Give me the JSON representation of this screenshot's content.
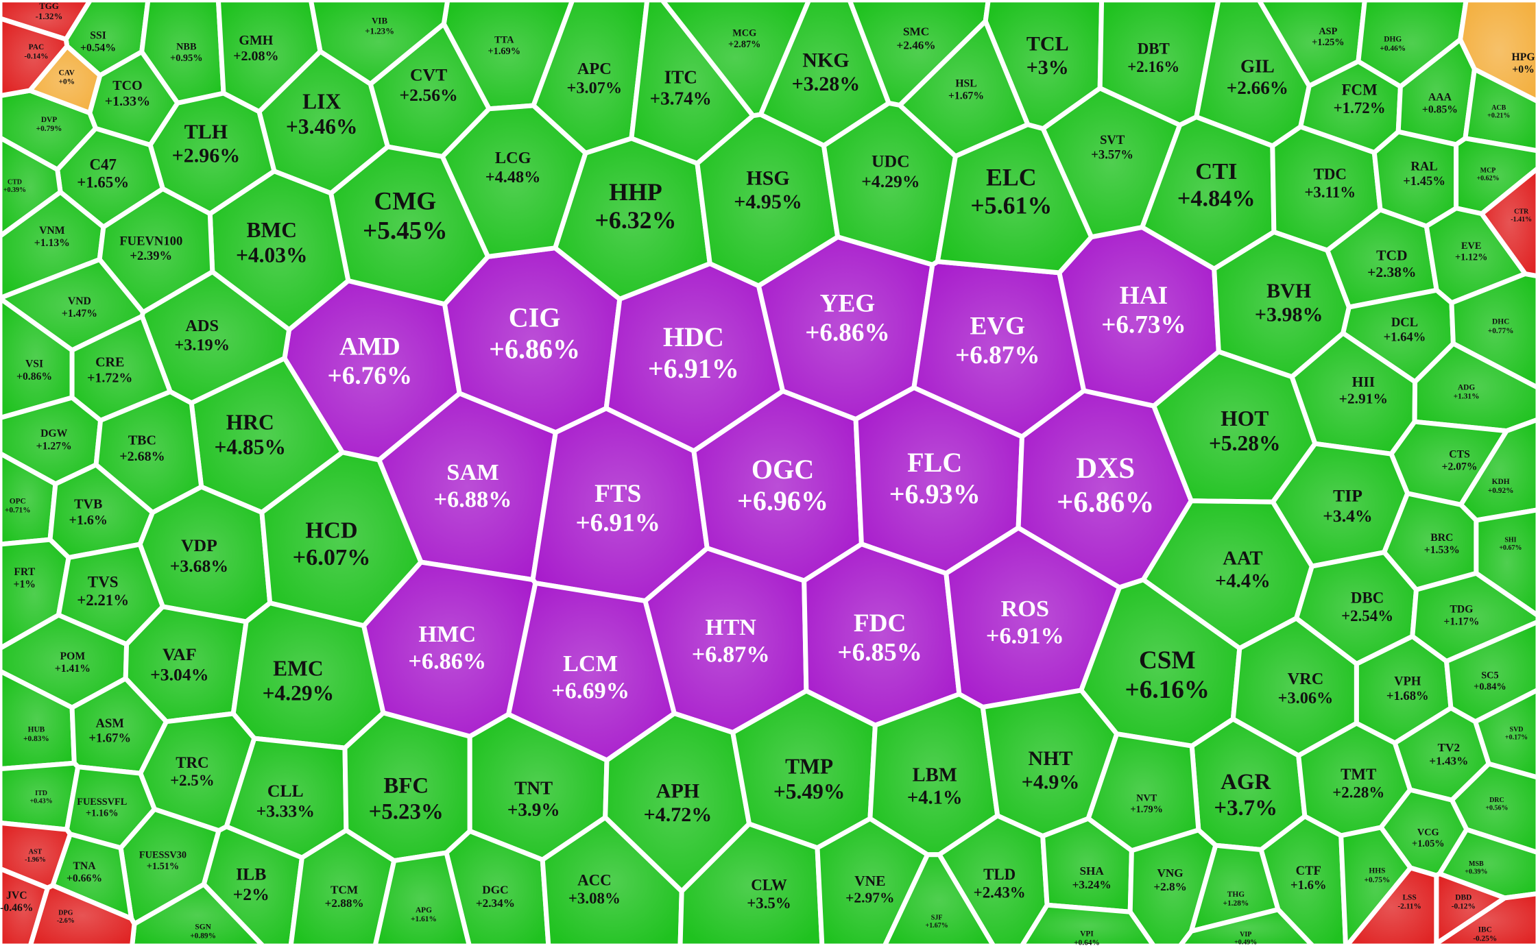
{
  "chart_data": {
    "type": "voronoi",
    "categories": [
      "AMD",
      "CIG",
      "HDC",
      "YEG",
      "EVG",
      "HAI",
      "SAM",
      "FTS",
      "OGC",
      "FLC",
      "DXS",
      "HMC",
      "LCM",
      "HTN",
      "FDC",
      "ROS",
      "LIX",
      "CVT",
      "TTA",
      "APC",
      "ITC",
      "MCG",
      "NKG",
      "SMC",
      "TCL",
      "DBT",
      "GIL",
      "ASP",
      "DHG",
      "SSI",
      "NBB",
      "GMH",
      "VIB",
      "TCO",
      "TLH",
      "C47",
      "DVP",
      "CTD",
      "LCG",
      "HHP",
      "HSG",
      "UDC",
      "HSL",
      "ELC",
      "SVT",
      "CTI",
      "FCM",
      "AAA",
      "TDC",
      "RAL",
      "ACB",
      "MCP",
      "CMG",
      "BMC",
      "VNM",
      "FUEVN100",
      "VND",
      "ADS",
      "BVH",
      "TCD",
      "EVE",
      "DCL",
      "DHC",
      "VSI",
      "CRE",
      "HRC",
      "DGW",
      "TBC",
      "HOT",
      "HII",
      "ADG",
      "CTS",
      "KDH",
      "OPC",
      "TVB",
      "VDP",
      "HCD",
      "TIP",
      "AAT",
      "BRC",
      "SHI",
      "FRT",
      "TVS",
      "DBC",
      "TDG",
      "POM",
      "VAF",
      "EMC",
      "CSM",
      "VRC",
      "VPH",
      "SC5",
      "HUB",
      "ASM",
      "TRC",
      "CLL",
      "BFC",
      "TNT",
      "APH",
      "TMP",
      "LBM",
      "NHT",
      "AGR",
      "TMT",
      "TV2",
      "SVD",
      "ITD",
      "FUESSVFL",
      "NVT",
      "DRC",
      "FUESSV30",
      "TNA",
      "ILB",
      "TCM",
      "DGC",
      "ACC",
      "CLW",
      "VNE",
      "TLD",
      "SHA",
      "VNG",
      "CTF",
      "VCG",
      "MSB",
      "HHS",
      "THG",
      "APG",
      "SGN",
      "SJF",
      "VPI",
      "VIP",
      "HPG",
      "CAV",
      "TGG",
      "PAC",
      "JVC",
      "AST",
      "DPG",
      "LSS",
      "DBD",
      "IBC",
      "CTR"
    ],
    "values": [
      6.76,
      6.86,
      6.91,
      6.86,
      6.87,
      6.73,
      6.88,
      6.91,
      6.96,
      6.93,
      6.86,
      6.86,
      6.69,
      6.87,
      6.85,
      6.91,
      3.46,
      2.56,
      1.69,
      3.07,
      3.74,
      2.87,
      3.28,
      2.46,
      3,
      2.16,
      2.66,
      1.25,
      0.46,
      0.54,
      0.95,
      2.08,
      1.23,
      1.33,
      2.96,
      1.65,
      0.79,
      0.39,
      4.48,
      6.32,
      4.95,
      4.29,
      1.67,
      5.61,
      3.57,
      4.84,
      1.72,
      0.85,
      3.11,
      1.45,
      0.21,
      0.62,
      5.45,
      4.03,
      1.13,
      2.39,
      1.47,
      3.19,
      3.98,
      2.38,
      1.12,
      1.64,
      0.77,
      0.86,
      1.72,
      4.85,
      1.27,
      2.68,
      5.28,
      2.91,
      1.31,
      2.07,
      0.92,
      0.71,
      1.6,
      3.68,
      6.07,
      3.4,
      4.4,
      1.53,
      0.67,
      1,
      2.21,
      2.54,
      1.17,
      1.41,
      3.04,
      4.29,
      6.16,
      3.06,
      1.68,
      0.84,
      0.83,
      1.67,
      2.5,
      3.33,
      5.23,
      3.9,
      4.72,
      5.49,
      4.1,
      4.9,
      3.7,
      2.28,
      1.43,
      0.17,
      0.43,
      1.16,
      1.79,
      0.56,
      1.51,
      0.66,
      2,
      2.88,
      2.34,
      3.08,
      3.5,
      2.97,
      2.43,
      3.24,
      2.8,
      1.6,
      1.05,
      0.39,
      0.75,
      1.28,
      1.61,
      0.89,
      1.67,
      0.64,
      0.49,
      0,
      0,
      -1.32,
      -0.14,
      -0.46,
      -1.96,
      -2.6,
      -2.11,
      -0.12,
      -0.25,
      -1.41
    ],
    "value_labels": [
      "+6.76%",
      "+6.86%",
      "+6.91%",
      "+6.86%",
      "+6.87%",
      "+6.73%",
      "+6.88%",
      "+6.91%",
      "+6.96%",
      "+6.93%",
      "+6.86%",
      "+6.86%",
      "+6.69%",
      "+6.87%",
      "+6.85%",
      "+6.91%",
      "+3.46%",
      "+2.56%",
      "+1.69%",
      "+3.07%",
      "+3.74%",
      "+2.87%",
      "+3.28%",
      "+2.46%",
      "+3%",
      "+2.16%",
      "+2.66%",
      "+1.25%",
      "+0.46%",
      "+0.54%",
      "+0.95%",
      "+2.08%",
      "+1.23%",
      "+1.33%",
      "+2.96%",
      "+1.65%",
      "+0.79%",
      "+0.39%",
      "+4.48%",
      "+6.32%",
      "+4.95%",
      "+4.29%",
      "+1.67%",
      "+5.61%",
      "+3.57%",
      "+4.84%",
      "+1.72%",
      "+0.85%",
      "+3.11%",
      "+1.45%",
      "+0.21%",
      "+0.62%",
      "+5.45%",
      "+4.03%",
      "+1.13%",
      "+2.39%",
      "+1.47%",
      "+3.19%",
      "+3.98%",
      "+2.38%",
      "+1.12%",
      "+1.64%",
      "+0.77%",
      "+0.86%",
      "+1.72%",
      "+4.85%",
      "+1.27%",
      "+2.68%",
      "+5.28%",
      "+2.91%",
      "+1.31%",
      "+2.07%",
      "+0.92%",
      "+0.71%",
      "+1.6%",
      "+3.68%",
      "+6.07%",
      "+3.4%",
      "+4.4%",
      "+1.53%",
      "+0.67%",
      "+1%",
      "+2.21%",
      "+2.54%",
      "+1.17%",
      "+1.41%",
      "+3.04%",
      "+4.29%",
      "+6.16%",
      "+3.06%",
      "+1.68%",
      "+0.84%",
      "+0.83%",
      "+1.67%",
      "+2.5%",
      "+3.33%",
      "+5.23%",
      "+3.9%",
      "+4.72%",
      "+5.49%",
      "+4.1%",
      "+4.9%",
      "+3.7%",
      "+2.28%",
      "+1.43%",
      "+0.17%",
      "+0.43%",
      "+1.16%",
      "+1.79%",
      "+0.56%",
      "+1.51%",
      "+0.66%",
      "+2%",
      "+2.88%",
      "+2.34%",
      "+3.08%",
      "+3.5%",
      "+2.97%",
      "+2.43%",
      "+3.24%",
      "+2.8%",
      "+1.6%",
      "+1.05%",
      "+0.39%",
      "+0.75%",
      "+1.28%",
      "+1.61%",
      "+0.89%",
      "+1.67%",
      "+0.64%",
      "+0.49%",
      "+0%",
      "+0%",
      "-1.32%",
      "-0.14%",
      "-0.46%",
      "-1.96%",
      "-2.6%",
      "-2.11%",
      "-0.12%",
      "-0.25%",
      "-1.41%"
    ],
    "colors": [
      "#a81ccc",
      "#a81ccc",
      "#a81ccc",
      "#a81ccc",
      "#a81ccc",
      "#a81ccc",
      "#a81ccc",
      "#a81ccc",
      "#a81ccc",
      "#a81ccc",
      "#a81ccc",
      "#a81ccc",
      "#a81ccc",
      "#a81ccc",
      "#a81ccc",
      "#a81ccc",
      "#1fc21f",
      "#1fc21f",
      "#1fc21f",
      "#1fc21f",
      "#1fc21f",
      "#1fc21f",
      "#1fc21f",
      "#1fc21f",
      "#1fc21f",
      "#1fc21f",
      "#1fc21f",
      "#1fc21f",
      "#1fc21f",
      "#1fc21f",
      "#1fc21f",
      "#1fc21f",
      "#1fc21f",
      "#1fc21f",
      "#1fc21f",
      "#1fc21f",
      "#1fc21f",
      "#1fc21f",
      "#1fc21f",
      "#1fc21f",
      "#1fc21f",
      "#1fc21f",
      "#1fc21f",
      "#1fc21f",
      "#1fc21f",
      "#1fc21f",
      "#1fc21f",
      "#1fc21f",
      "#1fc21f",
      "#1fc21f",
      "#1fc21f",
      "#1fc21f",
      "#1fc21f",
      "#1fc21f",
      "#1fc21f",
      "#1fc21f",
      "#1fc21f",
      "#1fc21f",
      "#1fc21f",
      "#1fc21f",
      "#1fc21f",
      "#1fc21f",
      "#1fc21f",
      "#1fc21f",
      "#1fc21f",
      "#1fc21f",
      "#1fc21f",
      "#1fc21f",
      "#1fc21f",
      "#1fc21f",
      "#1fc21f",
      "#1fc21f",
      "#1fc21f",
      "#1fc21f",
      "#1fc21f",
      "#1fc21f",
      "#1fc21f",
      "#1fc21f",
      "#1fc21f",
      "#1fc21f",
      "#1fc21f",
      "#1fc21f",
      "#1fc21f",
      "#1fc21f",
      "#1fc21f",
      "#1fc21f",
      "#1fc21f",
      "#1fc21f",
      "#1fc21f",
      "#1fc21f",
      "#1fc21f",
      "#1fc21f",
      "#1fc21f",
      "#1fc21f",
      "#1fc21f",
      "#1fc21f",
      "#1fc21f",
      "#1fc21f",
      "#1fc21f",
      "#1fc21f",
      "#1fc21f",
      "#1fc21f",
      "#1fc21f",
      "#1fc21f",
      "#1fc21f",
      "#1fc21f",
      "#1fc21f",
      "#1fc21f",
      "#1fc21f",
      "#1fc21f",
      "#1fc21f",
      "#1fc21f",
      "#1fc21f",
      "#1fc21f",
      "#1fc21f",
      "#1fc21f",
      "#1fc21f",
      "#1fc21f",
      "#1fc21f",
      "#1fc21f",
      "#1fc21f",
      "#1fc21f",
      "#1fc21f",
      "#1fc21f",
      "#1fc21f",
      "#1fc21f",
      "#1fc21f",
      "#1fc21f",
      "#1fc21f",
      "#1fc21f",
      "#1fc21f",
      "#f4b040",
      "#f4b040",
      "#e02424",
      "#e02424",
      "#e02424",
      "#e02424",
      "#e02424",
      "#e02424",
      "#e02424",
      "#e02424",
      "#e02424"
    ]
  }
}
